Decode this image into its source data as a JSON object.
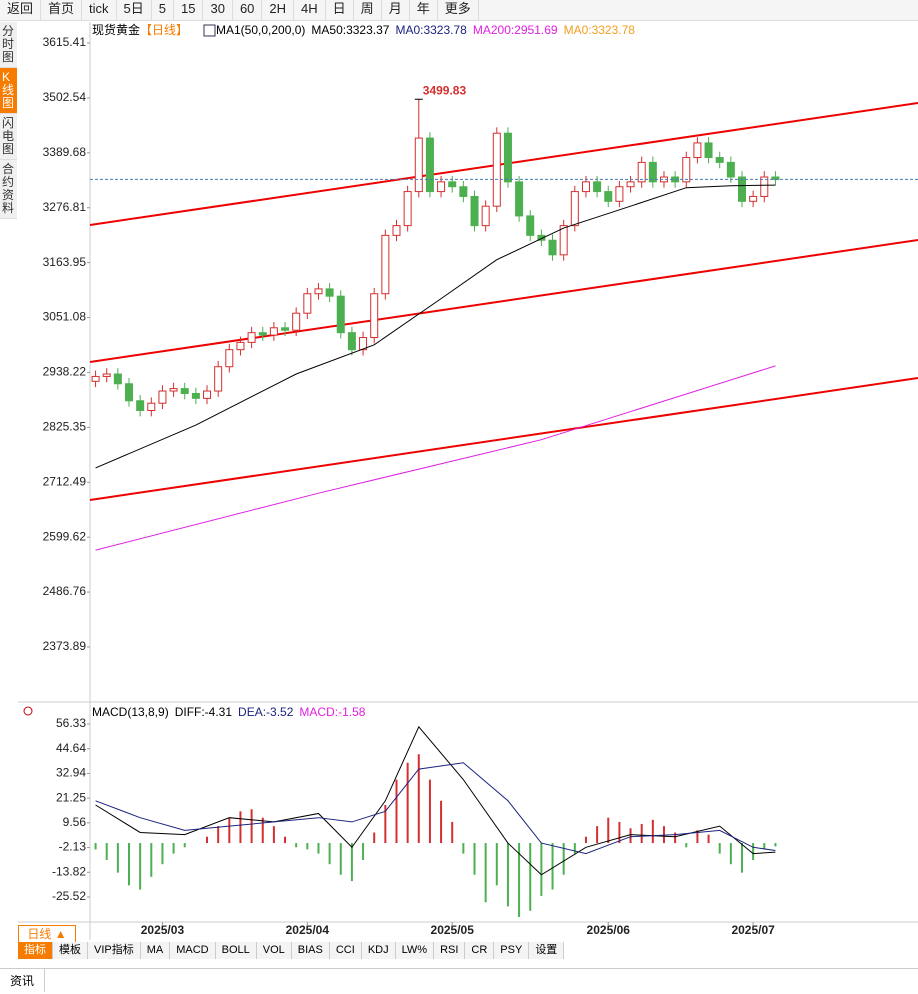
{
  "ui": {
    "toolbar": [
      "返回",
      "首页",
      "tick",
      "5日",
      "5",
      "15",
      "30",
      "60",
      "2H",
      "4H",
      "日",
      "周",
      "月",
      "年",
      "更多"
    ],
    "side_tabs": [
      "分时图",
      "K线图",
      "闪电图",
      "合约资料"
    ],
    "period_button": "日线 ▲",
    "indicator_tabs": [
      "指标",
      "模板",
      "VIP指标",
      "MA",
      "MACD",
      "BOLL",
      "VOL",
      "BIAS",
      "CCI",
      "KDJ",
      "LW%",
      "RSI",
      "CR",
      "PSY",
      "设置"
    ],
    "news_tab": "资讯"
  },
  "chart_data": {
    "type": "candlestick",
    "title": "现货黄金",
    "period": "【日线】",
    "legend": [
      {
        "text": "MA1(50,0,200,0)",
        "color": "#000000"
      },
      {
        "text": "MA50:3323.37",
        "color": "#000000"
      },
      {
        "text": "MA0:3323.78",
        "color": "#1a237e"
      },
      {
        "text": "MA200:2951.69",
        "color": "#e020e0"
      },
      {
        "text": "MA0:3323.78",
        "color": "#f0a020"
      }
    ],
    "up_color": "#d32f2f",
    "down_color": "#4caf50",
    "candles": {
      "open": [
        2920,
        2930,
        2935,
        2915,
        2880,
        2860,
        2875,
        2900,
        2905,
        2895,
        2885,
        2900,
        2950,
        2985,
        3000,
        3020,
        3015,
        3030,
        3025,
        3060,
        3100,
        3110,
        3095,
        3020,
        2985,
        3010,
        3100,
        3220,
        3240,
        3310,
        3420,
        3310,
        3330,
        3320,
        3300,
        3240,
        3280,
        3430,
        3330,
        3260,
        3220,
        3210,
        3180,
        3240,
        3310,
        3330,
        3310,
        3290,
        3320,
        3330,
        3370,
        3330,
        3340,
        3330,
        3380,
        3410,
        3380,
        3370,
        3340,
        3290,
        3300,
        3340
      ],
      "high": [
        2942,
        2947,
        2947,
        2927,
        2892,
        2887,
        2912,
        2917,
        2917,
        2907,
        2912,
        2962,
        2997,
        3012,
        3032,
        3032,
        3042,
        3042,
        3072,
        3112,
        3122,
        3122,
        3107,
        3032,
        3022,
        3112,
        3232,
        3252,
        3322,
        3499.83,
        3432,
        3342,
        3342,
        3332,
        3312,
        3292,
        3442,
        3442,
        3342,
        3272,
        3232,
        3222,
        3252,
        3322,
        3342,
        3342,
        3322,
        3332,
        3342,
        3382,
        3382,
        3352,
        3352,
        3392,
        3422,
        3422,
        3392,
        3382,
        3352,
        3312,
        3352,
        3352
      ],
      "low": [
        2908,
        2918,
        2903,
        2868,
        2848,
        2848,
        2863,
        2888,
        2883,
        2873,
        2873,
        2888,
        2938,
        2973,
        2988,
        3003,
        3003,
        3013,
        3013,
        3048,
        3088,
        3083,
        3008,
        2973,
        2973,
        2998,
        3088,
        3208,
        3228,
        3298,
        3298,
        3298,
        3308,
        3288,
        3228,
        3228,
        3268,
        3318,
        3248,
        3208,
        3198,
        3168,
        3168,
        3228,
        3298,
        3298,
        3278,
        3278,
        3308,
        3318,
        3318,
        3318,
        3318,
        3318,
        3368,
        3368,
        3358,
        3328,
        3278,
        3278,
        3288,
        3323
      ],
      "close": [
        2930,
        2935,
        2915,
        2880,
        2860,
        2875,
        2900,
        2905,
        2895,
        2885,
        2900,
        2950,
        2985,
        3000,
        3020,
        3015,
        3030,
        3025,
        3060,
        3100,
        3110,
        3095,
        3020,
        2985,
        3010,
        3100,
        3220,
        3240,
        3310,
        3420,
        3310,
        3330,
        3320,
        3300,
        3240,
        3280,
        3430,
        3330,
        3260,
        3220,
        3210,
        3180,
        3240,
        3310,
        3330,
        3310,
        3290,
        3320,
        3330,
        3370,
        3330,
        3340,
        3330,
        3380,
        3410,
        3380,
        3370,
        3340,
        3290,
        3300,
        3340,
        3335
      ]
    },
    "peak_label": {
      "index": 29,
      "text": "3499.83"
    },
    "series": [
      {
        "name": "MA50",
        "color": "#000000",
        "x": [
          0,
          9,
          18,
          25,
          31,
          36,
          42,
          48,
          53,
          57,
          61
        ],
        "values": [
          2742,
          2830,
          2935,
          2995,
          3090,
          3170,
          3235,
          3280,
          3318,
          3322,
          3323.37
        ]
      },
      {
        "name": "MA200",
        "color": "#e020e0",
        "x": [
          0,
          20,
          40,
          61
        ],
        "values": [
          2573,
          2690,
          2800,
          2951.69
        ]
      }
    ],
    "xlim": [
      -0.5,
      61.5
    ],
    "xticks": [
      {
        "value": 6,
        "label": "2025/03"
      },
      {
        "value": 19,
        "label": "2025/04"
      },
      {
        "value": 32,
        "label": "2025/05"
      },
      {
        "value": 46,
        "label": "2025/06"
      },
      {
        "value": 59,
        "label": "2025/07"
      }
    ],
    "ylim": [
      2264.9,
      3658.6
    ],
    "yticks": [
      3615.41,
      3502.54,
      3389.68,
      3276.81,
      3163.95,
      3051.08,
      2938.22,
      2825.35,
      2712.49,
      2599.62,
      2486.76,
      2373.89
    ],
    "macd": {
      "legend": [
        {
          "text": "MACD(13,8,9)",
          "color": "#000000"
        },
        {
          "text": "DIFF:-4.31",
          "color": "#000000"
        },
        {
          "text": "DEA:-3.52",
          "color": "#1a237e"
        },
        {
          "text": "MACD:-1.58",
          "color": "#e020e0"
        }
      ],
      "ylim": [
        -36.4,
        62
      ],
      "yticks": [
        56.33,
        44.64,
        32.94,
        21.25,
        9.56,
        -2.13,
        -13.82,
        -25.52
      ],
      "hist": [
        -3,
        -8,
        -14,
        -20,
        -22,
        -16,
        -10,
        -5,
        -2,
        0,
        3,
        8,
        12,
        15,
        16,
        12,
        8,
        3,
        -2,
        -3,
        -5,
        -10,
        -15,
        -18,
        -8,
        5,
        18,
        30,
        38,
        42,
        30,
        20,
        10,
        -5,
        -15,
        -28,
        -20,
        -30,
        -35,
        -32,
        -25,
        -22,
        -15,
        -5,
        3,
        8,
        12,
        10,
        7,
        9,
        11,
        8,
        5,
        -2,
        6,
        4,
        -5,
        -10,
        -14,
        -8,
        -3,
        -1.58
      ],
      "diff": {
        "color": "#000000",
        "x": [
          0,
          4,
          8,
          12,
          16,
          20,
          23,
          26,
          29,
          33,
          37,
          40,
          44,
          48,
          52,
          56,
          59,
          61
        ],
        "values": [
          18,
          5,
          4,
          12,
          10,
          14,
          -2,
          20,
          55,
          30,
          0,
          -15,
          -2,
          4,
          3,
          8,
          -5,
          -4.31
        ]
      },
      "dea": {
        "color": "#1a237e",
        "x": [
          0,
          4,
          8,
          12,
          16,
          20,
          23,
          26,
          29,
          33,
          37,
          40,
          44,
          48,
          52,
          56,
          59,
          61
        ],
        "values": [
          20,
          12,
          6,
          8,
          10,
          12,
          10,
          15,
          35,
          38,
          20,
          0,
          -5,
          3,
          4,
          6,
          -2,
          -3.52
        ]
      }
    }
  }
}
